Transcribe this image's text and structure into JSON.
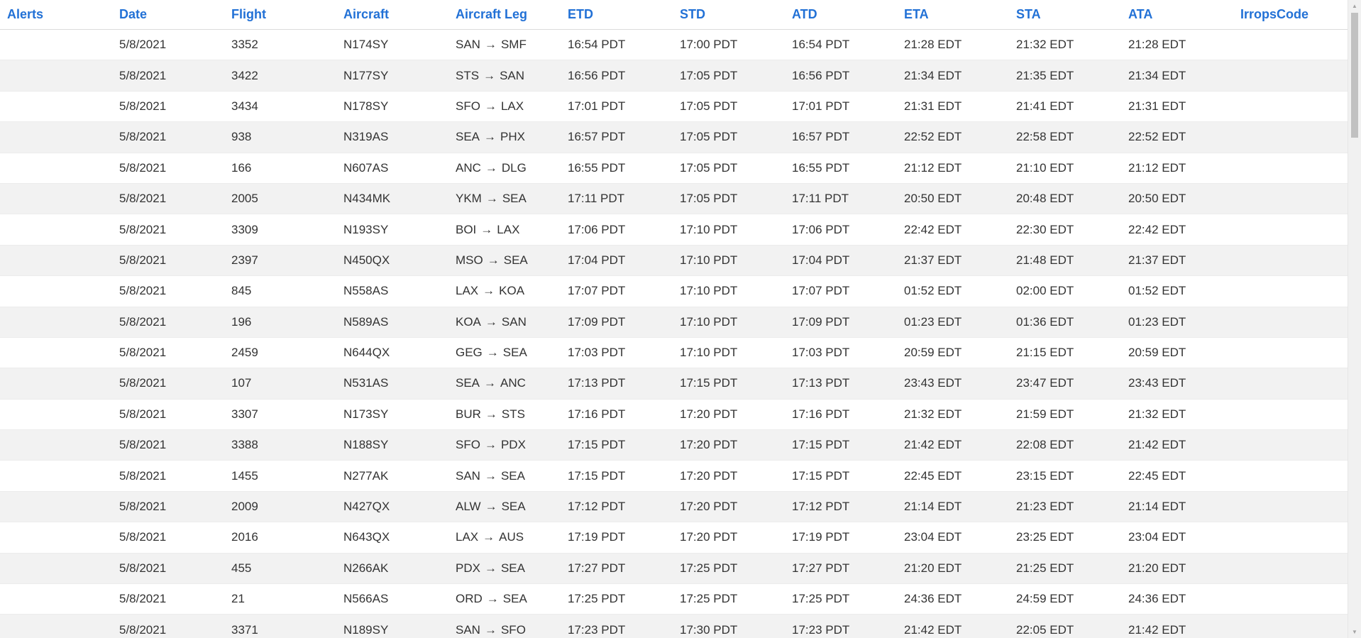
{
  "table": {
    "columns": [
      "Alerts",
      "Date",
      "Flight",
      "Aircraft",
      "Aircraft Leg",
      "ETD",
      "STD",
      "ATD",
      "ETA",
      "STA",
      "ATA",
      "IrropsCode"
    ],
    "arrow": "→",
    "rows": [
      {
        "alerts": "",
        "date": "5/8/2021",
        "flight": "3352",
        "aircraft": "N174SY",
        "from": "SAN",
        "to": "SMF",
        "etd": "16:54 PDT",
        "std": "17:00 PDT",
        "atd": "16:54 PDT",
        "eta": "21:28 EDT",
        "sta": "21:32 EDT",
        "ata": "21:28 EDT",
        "irrops": ""
      },
      {
        "alerts": "",
        "date": "5/8/2021",
        "flight": "3422",
        "aircraft": "N177SY",
        "from": "STS",
        "to": "SAN",
        "etd": "16:56 PDT",
        "std": "17:05 PDT",
        "atd": "16:56 PDT",
        "eta": "21:34 EDT",
        "sta": "21:35 EDT",
        "ata": "21:34 EDT",
        "irrops": ""
      },
      {
        "alerts": "",
        "date": "5/8/2021",
        "flight": "3434",
        "aircraft": "N178SY",
        "from": "SFO",
        "to": "LAX",
        "etd": "17:01 PDT",
        "std": "17:05 PDT",
        "atd": "17:01 PDT",
        "eta": "21:31 EDT",
        "sta": "21:41 EDT",
        "ata": "21:31 EDT",
        "irrops": ""
      },
      {
        "alerts": "",
        "date": "5/8/2021",
        "flight": "938",
        "aircraft": "N319AS",
        "from": "SEA",
        "to": "PHX",
        "etd": "16:57 PDT",
        "std": "17:05 PDT",
        "atd": "16:57 PDT",
        "eta": "22:52 EDT",
        "sta": "22:58 EDT",
        "ata": "22:52 EDT",
        "irrops": ""
      },
      {
        "alerts": "",
        "date": "5/8/2021",
        "flight": "166",
        "aircraft": "N607AS",
        "from": "ANC",
        "to": "DLG",
        "etd": "16:55 PDT",
        "std": "17:05 PDT",
        "atd": "16:55 PDT",
        "eta": "21:12 EDT",
        "sta": "21:10 EDT",
        "ata": "21:12 EDT",
        "irrops": ""
      },
      {
        "alerts": "",
        "date": "5/8/2021",
        "flight": "2005",
        "aircraft": "N434MK",
        "from": "YKM",
        "to": "SEA",
        "etd": "17:11 PDT",
        "std": "17:05 PDT",
        "atd": "17:11 PDT",
        "eta": "20:50 EDT",
        "sta": "20:48 EDT",
        "ata": "20:50 EDT",
        "irrops": ""
      },
      {
        "alerts": "",
        "date": "5/8/2021",
        "flight": "3309",
        "aircraft": "N193SY",
        "from": "BOI",
        "to": "LAX",
        "etd": "17:06 PDT",
        "std": "17:10 PDT",
        "atd": "17:06 PDT",
        "eta": "22:42 EDT",
        "sta": "22:30 EDT",
        "ata": "22:42 EDT",
        "irrops": ""
      },
      {
        "alerts": "",
        "date": "5/8/2021",
        "flight": "2397",
        "aircraft": "N450QX",
        "from": "MSO",
        "to": "SEA",
        "etd": "17:04 PDT",
        "std": "17:10 PDT",
        "atd": "17:04 PDT",
        "eta": "21:37 EDT",
        "sta": "21:48 EDT",
        "ata": "21:37 EDT",
        "irrops": ""
      },
      {
        "alerts": "",
        "date": "5/8/2021",
        "flight": "845",
        "aircraft": "N558AS",
        "from": "LAX",
        "to": "KOA",
        "etd": "17:07 PDT",
        "std": "17:10 PDT",
        "atd": "17:07 PDT",
        "eta": "01:52 EDT",
        "sta": "02:00 EDT",
        "ata": "01:52 EDT",
        "irrops": ""
      },
      {
        "alerts": "",
        "date": "5/8/2021",
        "flight": "196",
        "aircraft": "N589AS",
        "from": "KOA",
        "to": "SAN",
        "etd": "17:09 PDT",
        "std": "17:10 PDT",
        "atd": "17:09 PDT",
        "eta": "01:23 EDT",
        "sta": "01:36 EDT",
        "ata": "01:23 EDT",
        "irrops": ""
      },
      {
        "alerts": "",
        "date": "5/8/2021",
        "flight": "2459",
        "aircraft": "N644QX",
        "from": "GEG",
        "to": "SEA",
        "etd": "17:03 PDT",
        "std": "17:10 PDT",
        "atd": "17:03 PDT",
        "eta": "20:59 EDT",
        "sta": "21:15 EDT",
        "ata": "20:59 EDT",
        "irrops": ""
      },
      {
        "alerts": "",
        "date": "5/8/2021",
        "flight": "107",
        "aircraft": "N531AS",
        "from": "SEA",
        "to": "ANC",
        "etd": "17:13 PDT",
        "std": "17:15 PDT",
        "atd": "17:13 PDT",
        "eta": "23:43 EDT",
        "sta": "23:47 EDT",
        "ata": "23:43 EDT",
        "irrops": ""
      },
      {
        "alerts": "",
        "date": "5/8/2021",
        "flight": "3307",
        "aircraft": "N173SY",
        "from": "BUR",
        "to": "STS",
        "etd": "17:16 PDT",
        "std": "17:20 PDT",
        "atd": "17:16 PDT",
        "eta": "21:32 EDT",
        "sta": "21:59 EDT",
        "ata": "21:32 EDT",
        "irrops": ""
      },
      {
        "alerts": "",
        "date": "5/8/2021",
        "flight": "3388",
        "aircraft": "N188SY",
        "from": "SFO",
        "to": "PDX",
        "etd": "17:15 PDT",
        "std": "17:20 PDT",
        "atd": "17:15 PDT",
        "eta": "21:42 EDT",
        "sta": "22:08 EDT",
        "ata": "21:42 EDT",
        "irrops": ""
      },
      {
        "alerts": "",
        "date": "5/8/2021",
        "flight": "1455",
        "aircraft": "N277AK",
        "from": "SAN",
        "to": "SEA",
        "etd": "17:15 PDT",
        "std": "17:20 PDT",
        "atd": "17:15 PDT",
        "eta": "22:45 EDT",
        "sta": "23:15 EDT",
        "ata": "22:45 EDT",
        "irrops": ""
      },
      {
        "alerts": "",
        "date": "5/8/2021",
        "flight": "2009",
        "aircraft": "N427QX",
        "from": "ALW",
        "to": "SEA",
        "etd": "17:12 PDT",
        "std": "17:20 PDT",
        "atd": "17:12 PDT",
        "eta": "21:14 EDT",
        "sta": "21:23 EDT",
        "ata": "21:14 EDT",
        "irrops": ""
      },
      {
        "alerts": "",
        "date": "5/8/2021",
        "flight": "2016",
        "aircraft": "N643QX",
        "from": "LAX",
        "to": "AUS",
        "etd": "17:19 PDT",
        "std": "17:20 PDT",
        "atd": "17:19 PDT",
        "eta": "23:04 EDT",
        "sta": "23:25 EDT",
        "ata": "23:04 EDT",
        "irrops": ""
      },
      {
        "alerts": "",
        "date": "5/8/2021",
        "flight": "455",
        "aircraft": "N266AK",
        "from": "PDX",
        "to": "SEA",
        "etd": "17:27 PDT",
        "std": "17:25 PDT",
        "atd": "17:27 PDT",
        "eta": "21:20 EDT",
        "sta": "21:25 EDT",
        "ata": "21:20 EDT",
        "irrops": ""
      },
      {
        "alerts": "",
        "date": "5/8/2021",
        "flight": "21",
        "aircraft": "N566AS",
        "from": "ORD",
        "to": "SEA",
        "etd": "17:25 PDT",
        "std": "17:25 PDT",
        "atd": "17:25 PDT",
        "eta": "24:36 EDT",
        "sta": "24:59 EDT",
        "ata": "24:36 EDT",
        "irrops": ""
      },
      {
        "alerts": "",
        "date": "5/8/2021",
        "flight": "3371",
        "aircraft": "N189SY",
        "from": "SAN",
        "to": "SFO",
        "etd": "17:23 PDT",
        "std": "17:30 PDT",
        "atd": "17:23 PDT",
        "eta": "21:42 EDT",
        "sta": "22:05 EDT",
        "ata": "21:42 EDT",
        "irrops": ""
      }
    ]
  },
  "scrollbar": {
    "up_icon": "triangle-up",
    "down_icon": "triangle-down"
  }
}
